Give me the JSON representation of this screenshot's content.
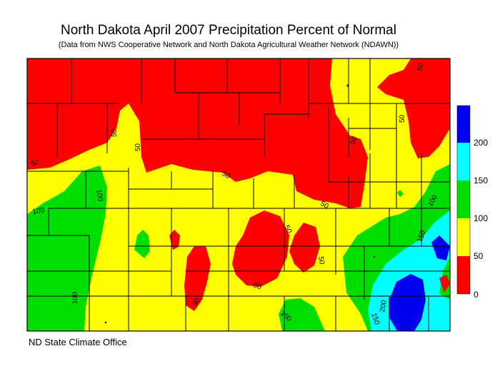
{
  "title": "North Dakota April 2007 Precipitation Percent of Normal",
  "subtitle": "(Data from NWS Cooperative Network and North Dakota Agricultural Weather Network (NDAWN))",
  "credit": "ND State Climate Office",
  "legend": {
    "bands": [
      {
        "range": "0-50",
        "color": "#ff0000"
      },
      {
        "range": "50-100",
        "color": "#ffff00"
      },
      {
        "range": "100-150",
        "color": "#00dd00"
      },
      {
        "range": "150-200",
        "color": "#00ffff"
      },
      {
        "range": "200+",
        "color": "#0000ee"
      }
    ],
    "tick_labels": [
      "0",
      "50",
      "100",
      "150",
      "200"
    ]
  },
  "contour_labels": [
    "50",
    "50",
    "50",
    "50",
    "50",
    "50",
    "50",
    "50",
    "100",
    "100",
    "100",
    "100",
    "50",
    "50",
    "50",
    "150",
    "150",
    "200",
    "100"
  ]
}
